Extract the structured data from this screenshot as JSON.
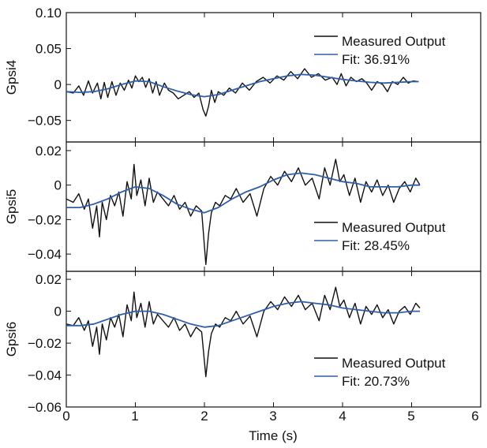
{
  "figure": {
    "xlabel": "Time (s)",
    "x_ticks": [
      "0",
      "1",
      "2",
      "3",
      "4",
      "5",
      "6"
    ]
  },
  "chart_data": [
    {
      "type": "line",
      "ylabel": "Gpsi4",
      "xlim": [
        0,
        6
      ],
      "ylim": [
        -0.08,
        0.1
      ],
      "y_ticks": [
        0.1,
        0.05,
        0,
        -0.05
      ],
      "y_tick_labels": [
        "0.10",
        "0.05",
        "0",
        "−0.05"
      ],
      "legend_position": "top-right",
      "series": [
        {
          "name": "Measured Output",
          "color": "#111111",
          "x": [
            0,
            0.1,
            0.18,
            0.25,
            0.32,
            0.38,
            0.45,
            0.5,
            0.55,
            0.6,
            0.66,
            0.72,
            0.78,
            0.84,
            0.9,
            0.95,
            1.0,
            1.05,
            1.1,
            1.15,
            1.2,
            1.25,
            1.3,
            1.35,
            1.42,
            1.48,
            1.55,
            1.62,
            1.7,
            1.78,
            1.85,
            1.92,
            1.98,
            2.02,
            2.06,
            2.1,
            2.15,
            2.2,
            2.28,
            2.36,
            2.45,
            2.55,
            2.65,
            2.75,
            2.85,
            2.95,
            3.05,
            3.15,
            3.25,
            3.35,
            3.45,
            3.55,
            3.65,
            3.75,
            3.85,
            3.92,
            3.98,
            4.05,
            4.12,
            4.2,
            4.28,
            4.35,
            4.42,
            4.5,
            4.58,
            4.65,
            4.72,
            4.8,
            4.88,
            4.95,
            5.02,
            5.1
          ],
          "values": [
            -0.01,
            -0.012,
            -0.002,
            -0.015,
            0.005,
            -0.012,
            0.002,
            -0.02,
            0.003,
            -0.018,
            0.004,
            -0.015,
            0.002,
            -0.008,
            0.006,
            -0.005,
            0.012,
            0.004,
            0.01,
            -0.004,
            0.008,
            -0.012,
            0.004,
            -0.015,
            0.002,
            -0.008,
            -0.012,
            -0.02,
            -0.015,
            -0.01,
            -0.018,
            -0.012,
            -0.035,
            -0.044,
            -0.03,
            -0.008,
            -0.025,
            -0.01,
            -0.015,
            -0.005,
            -0.012,
            0.002,
            -0.008,
            0.004,
            0.01,
            0.002,
            0.012,
            0.006,
            0.018,
            0.008,
            0.022,
            0.01,
            0.015,
            0.006,
            0.01,
            0.0,
            0.015,
            -0.002,
            0.01,
            0.004,
            0.008,
            0.002,
            -0.008,
            0.004,
            0.0,
            -0.01,
            0.004,
            0.0,
            0.01,
            0.002,
            0.005,
            0.004
          ]
        },
        {
          "name": "Fit: 36.91%",
          "color": "#2f5fa8",
          "x": [
            0,
            0.2,
            0.4,
            0.6,
            0.8,
            1.0,
            1.2,
            1.4,
            1.6,
            1.8,
            2.0,
            2.2,
            2.4,
            2.6,
            2.8,
            3.0,
            3.2,
            3.4,
            3.6,
            3.8,
            4.0,
            4.2,
            4.4,
            4.6,
            4.8,
            5.0,
            5.1
          ],
          "values": [
            -0.01,
            -0.011,
            -0.01,
            -0.006,
            0.0,
            0.005,
            0.004,
            -0.003,
            -0.009,
            -0.014,
            -0.017,
            -0.014,
            -0.008,
            -0.002,
            0.004,
            0.008,
            0.012,
            0.014,
            0.013,
            0.01,
            0.007,
            0.005,
            0.003,
            0.002,
            0.003,
            0.004,
            0.004
          ]
        }
      ]
    },
    {
      "type": "line",
      "ylabel": "Gpsi5",
      "xlim": [
        0,
        6
      ],
      "ylim": [
        -0.05,
        0.025
      ],
      "y_ticks": [
        0.02,
        0,
        -0.02,
        -0.04
      ],
      "y_tick_labels": [
        "0.02",
        "0",
        "−0.02",
        "−0.04"
      ],
      "legend_position": "bottom-right",
      "series": [
        {
          "name": "Measured Output",
          "color": "#111111",
          "x": [
            0,
            0.1,
            0.18,
            0.26,
            0.32,
            0.38,
            0.44,
            0.48,
            0.52,
            0.58,
            0.64,
            0.7,
            0.76,
            0.82,
            0.88,
            0.94,
            0.98,
            1.02,
            1.08,
            1.14,
            1.2,
            1.26,
            1.32,
            1.4,
            1.48,
            1.56,
            1.64,
            1.72,
            1.8,
            1.88,
            1.96,
            2.02,
            2.06,
            2.1,
            2.16,
            2.22,
            2.3,
            2.38,
            2.46,
            2.56,
            2.66,
            2.76,
            2.86,
            2.96,
            3.06,
            3.16,
            3.26,
            3.36,
            3.46,
            3.56,
            3.66,
            3.74,
            3.82,
            3.9,
            3.96,
            4.02,
            4.1,
            4.18,
            4.26,
            4.34,
            4.42,
            4.5,
            4.58,
            4.66,
            4.74,
            4.82,
            4.9,
            4.98,
            5.06,
            5.12
          ],
          "values": [
            -0.008,
            -0.01,
            -0.005,
            -0.014,
            -0.008,
            -0.025,
            -0.012,
            -0.03,
            -0.01,
            -0.02,
            -0.006,
            -0.012,
            -0.004,
            -0.018,
            0.002,
            -0.008,
            0.012,
            -0.006,
            0.003,
            -0.012,
            0.004,
            -0.01,
            -0.004,
            -0.008,
            -0.012,
            -0.006,
            -0.014,
            -0.01,
            -0.018,
            -0.012,
            -0.015,
            -0.046,
            -0.028,
            -0.016,
            -0.01,
            -0.012,
            -0.006,
            -0.008,
            -0.002,
            -0.01,
            -0.005,
            -0.018,
            -0.002,
            0.005,
            0.0,
            0.008,
            0.002,
            0.01,
            0.0,
            0.004,
            -0.008,
            0.01,
            0.0,
            0.015,
            0.002,
            0.006,
            -0.006,
            0.004,
            -0.01,
            0.002,
            -0.004,
            0.003,
            -0.006,
            0.0,
            -0.01,
            -0.002,
            0.002,
            -0.004,
            0.004,
            0.0
          ]
        },
        {
          "name": "Fit: 28.45%",
          "color": "#2f5fa8",
          "x": [
            0,
            0.2,
            0.4,
            0.6,
            0.8,
            1.0,
            1.2,
            1.4,
            1.6,
            1.8,
            2.0,
            2.2,
            2.4,
            2.6,
            2.8,
            3.0,
            3.2,
            3.4,
            3.6,
            3.8,
            4.0,
            4.2,
            4.4,
            4.6,
            4.8,
            5.0,
            5.12
          ],
          "values": [
            -0.013,
            -0.013,
            -0.011,
            -0.008,
            -0.004,
            -0.001,
            -0.002,
            -0.006,
            -0.011,
            -0.014,
            -0.016,
            -0.013,
            -0.008,
            -0.004,
            -0.001,
            0.003,
            0.006,
            0.007,
            0.006,
            0.004,
            0.002,
            0.001,
            -0.001,
            -0.001,
            -0.001,
            0.0,
            0.0
          ]
        }
      ]
    },
    {
      "type": "line",
      "ylabel": "Gpsi6",
      "xlim": [
        0,
        6
      ],
      "ylim": [
        -0.06,
        0.025
      ],
      "y_ticks": [
        0.02,
        0,
        -0.02,
        -0.04,
        -0.06
      ],
      "y_tick_labels": [
        "0.02",
        "0",
        "−0.02",
        "−0.04",
        "−0.06"
      ],
      "legend_position": "bottom-right",
      "series": [
        {
          "name": "Measured Output",
          "color": "#111111",
          "x": [
            0,
            0.1,
            0.18,
            0.26,
            0.32,
            0.38,
            0.44,
            0.48,
            0.52,
            0.58,
            0.64,
            0.7,
            0.76,
            0.82,
            0.88,
            0.94,
            0.98,
            1.02,
            1.08,
            1.14,
            1.2,
            1.26,
            1.32,
            1.4,
            1.48,
            1.56,
            1.64,
            1.72,
            1.8,
            1.88,
            1.96,
            2.02,
            2.06,
            2.1,
            2.16,
            2.22,
            2.3,
            2.38,
            2.46,
            2.56,
            2.66,
            2.76,
            2.86,
            2.96,
            3.06,
            3.16,
            3.26,
            3.36,
            3.46,
            3.56,
            3.66,
            3.74,
            3.82,
            3.9,
            3.96,
            4.02,
            4.1,
            4.18,
            4.26,
            4.34,
            4.42,
            4.5,
            4.58,
            4.66,
            4.74,
            4.82,
            4.9,
            4.98,
            5.06,
            5.12
          ],
          "values": [
            -0.008,
            -0.009,
            -0.004,
            -0.012,
            -0.006,
            -0.022,
            -0.01,
            -0.027,
            -0.008,
            -0.018,
            -0.004,
            -0.01,
            -0.002,
            -0.016,
            0.004,
            -0.006,
            0.012,
            -0.004,
            0.005,
            -0.01,
            0.006,
            -0.008,
            -0.002,
            -0.006,
            -0.01,
            -0.004,
            -0.012,
            -0.008,
            -0.016,
            -0.01,
            -0.013,
            -0.041,
            -0.025,
            -0.014,
            -0.008,
            -0.01,
            -0.004,
            -0.006,
            0.0,
            -0.008,
            -0.003,
            -0.016,
            0.0,
            0.006,
            0.001,
            0.009,
            0.003,
            0.01,
            0.001,
            0.005,
            -0.006,
            0.01,
            0.001,
            0.015,
            0.003,
            0.007,
            -0.004,
            0.005,
            -0.008,
            0.003,
            -0.002,
            0.004,
            -0.004,
            0.001,
            -0.008,
            0.0,
            0.003,
            -0.002,
            0.005,
            0.002
          ]
        },
        {
          "name": "Fit: 20.73%",
          "color": "#2f5fa8",
          "x": [
            0,
            0.2,
            0.4,
            0.6,
            0.8,
            1.0,
            1.2,
            1.4,
            1.6,
            1.8,
            2.0,
            2.2,
            2.4,
            2.6,
            2.8,
            3.0,
            3.2,
            3.4,
            3.6,
            3.8,
            4.0,
            4.2,
            4.4,
            4.6,
            4.8,
            5.0,
            5.12
          ],
          "values": [
            -0.009,
            -0.009,
            -0.008,
            -0.005,
            -0.002,
            0.0,
            0.0,
            -0.002,
            -0.005,
            -0.008,
            -0.01,
            -0.009,
            -0.006,
            -0.003,
            0.0,
            0.003,
            0.005,
            0.006,
            0.005,
            0.004,
            0.002,
            0.001,
            0.0,
            -0.001,
            -0.001,
            0.0,
            0.0
          ]
        }
      ]
    }
  ]
}
